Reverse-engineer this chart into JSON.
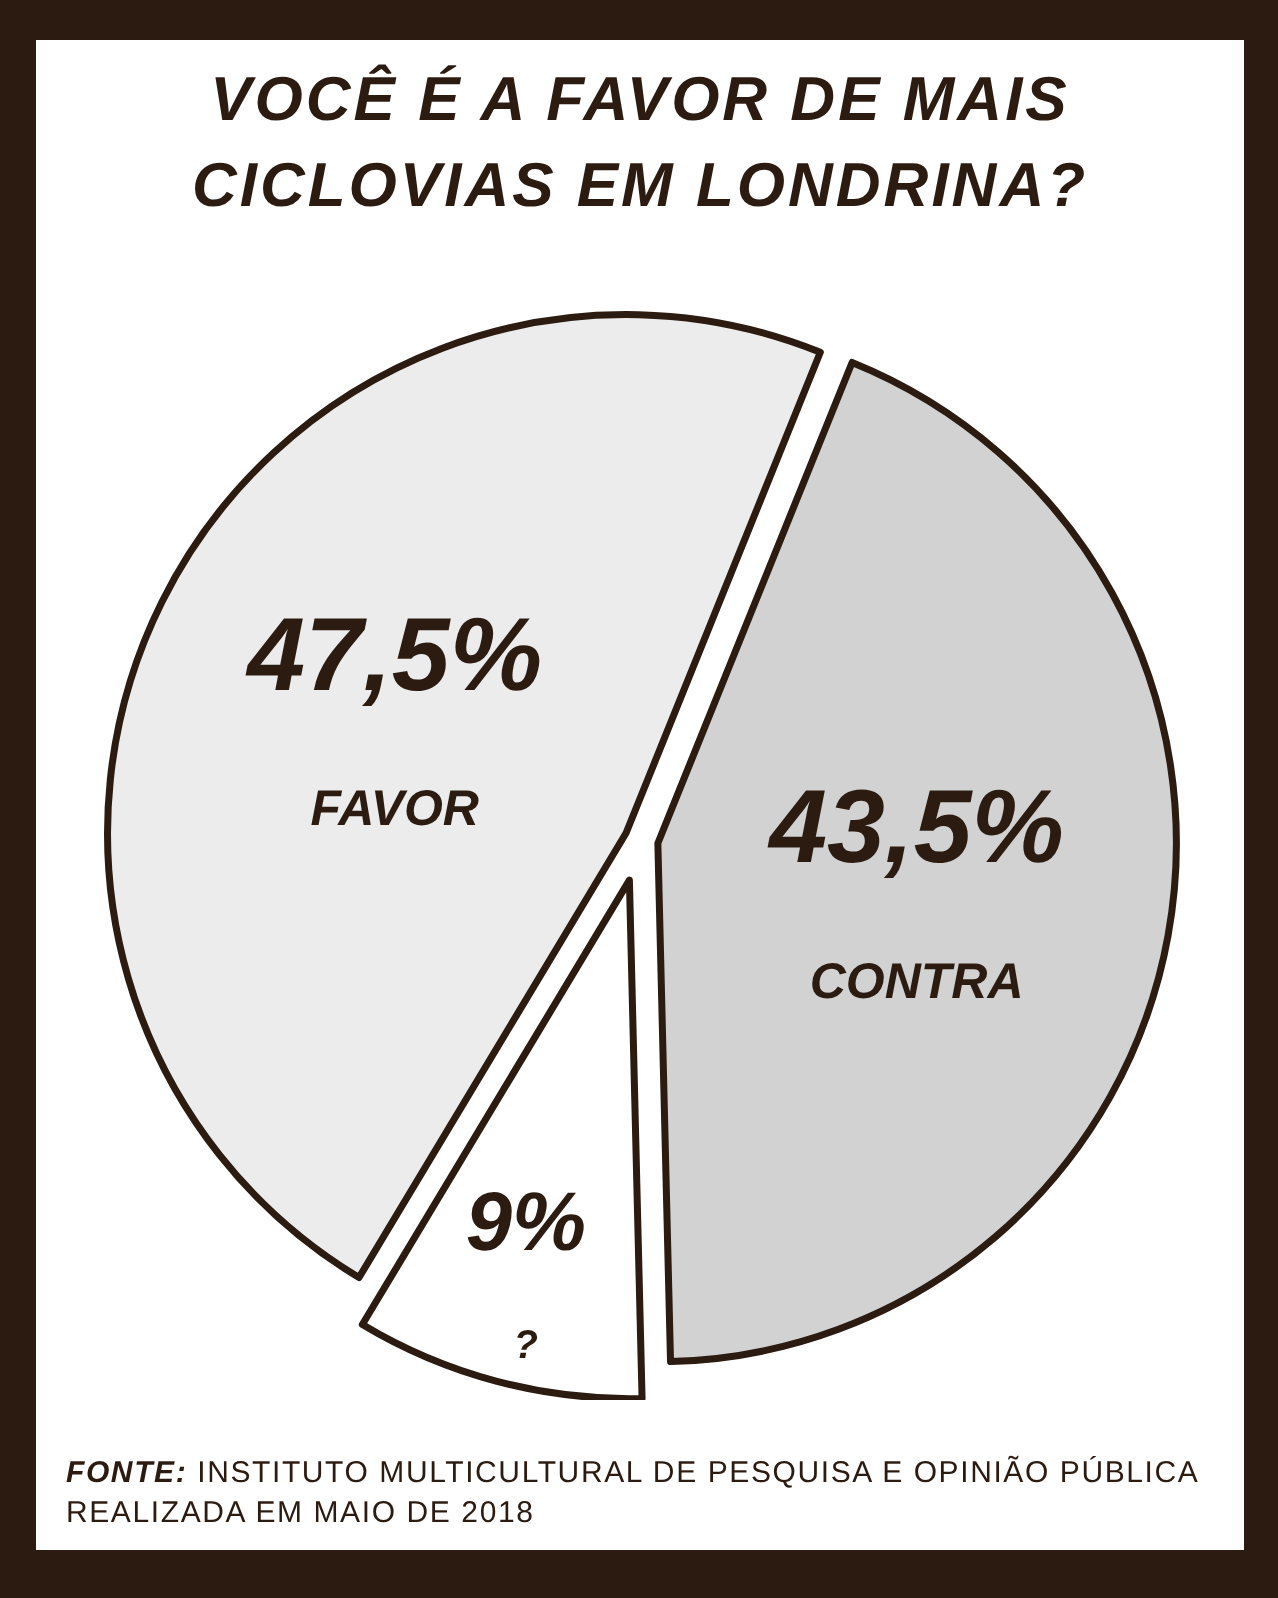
{
  "chart_data": {
    "type": "pie",
    "title": "VOCÊ É A FAVOR DE MAIS CICLOVIAS EM LONDRINA?",
    "categories": [
      "FAVOR",
      "CONTRA",
      "?"
    ],
    "values": [
      47.5,
      43.5,
      9
    ],
    "colors": [
      "#ececec",
      "#d2d2d2",
      "#ffffff"
    ],
    "value_labels": [
      "47,5%",
      "43,5%",
      "9%"
    ],
    "annotations": [
      "FONTE: INSTITUTO MULTICULTURAL DE PESQUISA E OPINIÃO PÚBLICA REALIZADA EM MAIO DE 2018"
    ]
  }
}
